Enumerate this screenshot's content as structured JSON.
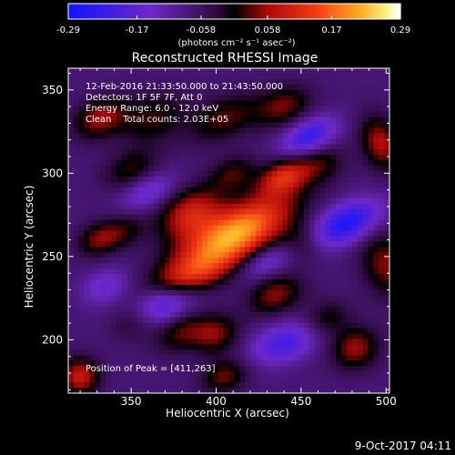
{
  "chart_data": {
    "type": "heatmap",
    "title": "Reconstructed RHESSI Image",
    "xlabel": "Heliocentric X (arcsec)",
    "ylabel": "Heliocentric Y (arcsec)",
    "xlim": [
      313,
      502
    ],
    "ylim": [
      168,
      363
    ],
    "x_ticks": [
      350,
      400,
      450,
      500
    ],
    "y_ticks": [
      200,
      250,
      300,
      350
    ],
    "colorbar": {
      "unit_label": "(photons cm⁻² s⁻¹ asec⁻²)",
      "ticks": [
        -0.29,
        -0.17,
        -0.058,
        0.058,
        0.17,
        0.29
      ],
      "tick_labels": [
        "-0.29",
        "-0.17",
        "-0.058",
        "0.058",
        "0.17",
        "0.29"
      ],
      "range": [
        -0.29,
        0.29
      ]
    },
    "annotations": {
      "time_range": "12-Feb-2016 21:33:50.000 to 21:43:50.000",
      "detectors": "Detectors: 1F 5F 7F, Att 0",
      "energy_range": "Energy Range: 6.0 - 12.0 keV",
      "clean_counts": "Clean    Total counts: 2.03E+05",
      "peak": "Position of Peak = [411,263]"
    },
    "peak": {
      "x": 411,
      "y": 263,
      "value": 0.29
    },
    "sources": [
      {
        "x": 411,
        "y": 263,
        "sx": 26,
        "sy": 11,
        "amp": 0.3,
        "angle": -30
      },
      {
        "x": 385,
        "y": 276,
        "sx": 14,
        "sy": 10,
        "amp": 0.16,
        "angle": -30
      },
      {
        "x": 332,
        "y": 333,
        "sx": 12,
        "sy": 8,
        "amp": 0.13,
        "angle": -25
      },
      {
        "x": 363,
        "y": 333,
        "sx": 14,
        "sy": 10,
        "amp": 0.09,
        "angle": -25
      },
      {
        "x": 405,
        "y": 333,
        "sx": 16,
        "sy": 9,
        "amp": 0.1,
        "angle": -25
      },
      {
        "x": 440,
        "y": 340,
        "sx": 12,
        "sy": 8,
        "amp": 0.11,
        "angle": -25
      },
      {
        "x": 497,
        "y": 318,
        "sx": 8,
        "sy": 12,
        "amp": 0.14,
        "angle": -20
      },
      {
        "x": 350,
        "y": 302,
        "sx": 12,
        "sy": 8,
        "amp": 0.09,
        "angle": -25
      },
      {
        "x": 410,
        "y": 300,
        "sx": 10,
        "sy": 7,
        "amp": 0.09,
        "angle": -25
      },
      {
        "x": 440,
        "y": 298,
        "sx": 11,
        "sy": 7,
        "amp": 0.17,
        "angle": -25
      },
      {
        "x": 462,
        "y": 306,
        "sx": 10,
        "sy": 8,
        "amp": 0.08,
        "angle": -25
      },
      {
        "x": 330,
        "y": 260,
        "sx": 9,
        "sy": 7,
        "amp": 0.1,
        "angle": -25
      },
      {
        "x": 345,
        "y": 265,
        "sx": 10,
        "sy": 7,
        "amp": 0.08,
        "angle": -25
      },
      {
        "x": 450,
        "y": 258,
        "sx": 9,
        "sy": 8,
        "amp": 0.07,
        "angle": -25
      },
      {
        "x": 500,
        "y": 245,
        "sx": 10,
        "sy": 14,
        "amp": 0.12,
        "angle": -20
      },
      {
        "x": 383,
        "y": 237,
        "sx": 18,
        "sy": 8,
        "amp": 0.13,
        "angle": -20
      },
      {
        "x": 435,
        "y": 227,
        "sx": 12,
        "sy": 8,
        "amp": 0.12,
        "angle": -20
      },
      {
        "x": 352,
        "y": 213,
        "sx": 11,
        "sy": 8,
        "amp": 0.12,
        "angle": -25
      },
      {
        "x": 380,
        "y": 205,
        "sx": 12,
        "sy": 8,
        "amp": 0.1,
        "angle": -25
      },
      {
        "x": 400,
        "y": 203,
        "sx": 10,
        "sy": 8,
        "amp": 0.11,
        "angle": -25
      },
      {
        "x": 465,
        "y": 213,
        "sx": 10,
        "sy": 7,
        "amp": 0.08,
        "angle": -25
      },
      {
        "x": 482,
        "y": 195,
        "sx": 10,
        "sy": 9,
        "amp": 0.13,
        "angle": -25
      },
      {
        "x": 320,
        "y": 178,
        "sx": 8,
        "sy": 8,
        "amp": 0.16,
        "angle": -20
      },
      {
        "x": 405,
        "y": 178,
        "sx": 10,
        "sy": 7,
        "amp": 0.11,
        "angle": -20
      },
      {
        "x": 477,
        "y": 270,
        "sx": 15,
        "sy": 8,
        "amp": -0.2,
        "angle": -25
      },
      {
        "x": 455,
        "y": 322,
        "sx": 12,
        "sy": 7,
        "amp": -0.16,
        "angle": -25
      },
      {
        "x": 365,
        "y": 220,
        "sx": 16,
        "sy": 8,
        "amp": -0.18,
        "angle": -20
      },
      {
        "x": 440,
        "y": 198,
        "sx": 14,
        "sy": 8,
        "amp": -0.14,
        "angle": -20
      },
      {
        "x": 360,
        "y": 289,
        "sx": 12,
        "sy": 7,
        "amp": -0.1,
        "angle": -25
      },
      {
        "x": 430,
        "y": 247,
        "sx": 12,
        "sy": 6,
        "amp": -0.1,
        "angle": -25
      },
      {
        "x": 335,
        "y": 232,
        "sx": 10,
        "sy": 7,
        "amp": -0.09,
        "angle": -25
      }
    ]
  },
  "footer": {
    "timestamp": "9-Oct-2017 04:11"
  },
  "colors": {
    "background": "#000000",
    "text": "#ffffff",
    "axis": "#ffffff"
  }
}
